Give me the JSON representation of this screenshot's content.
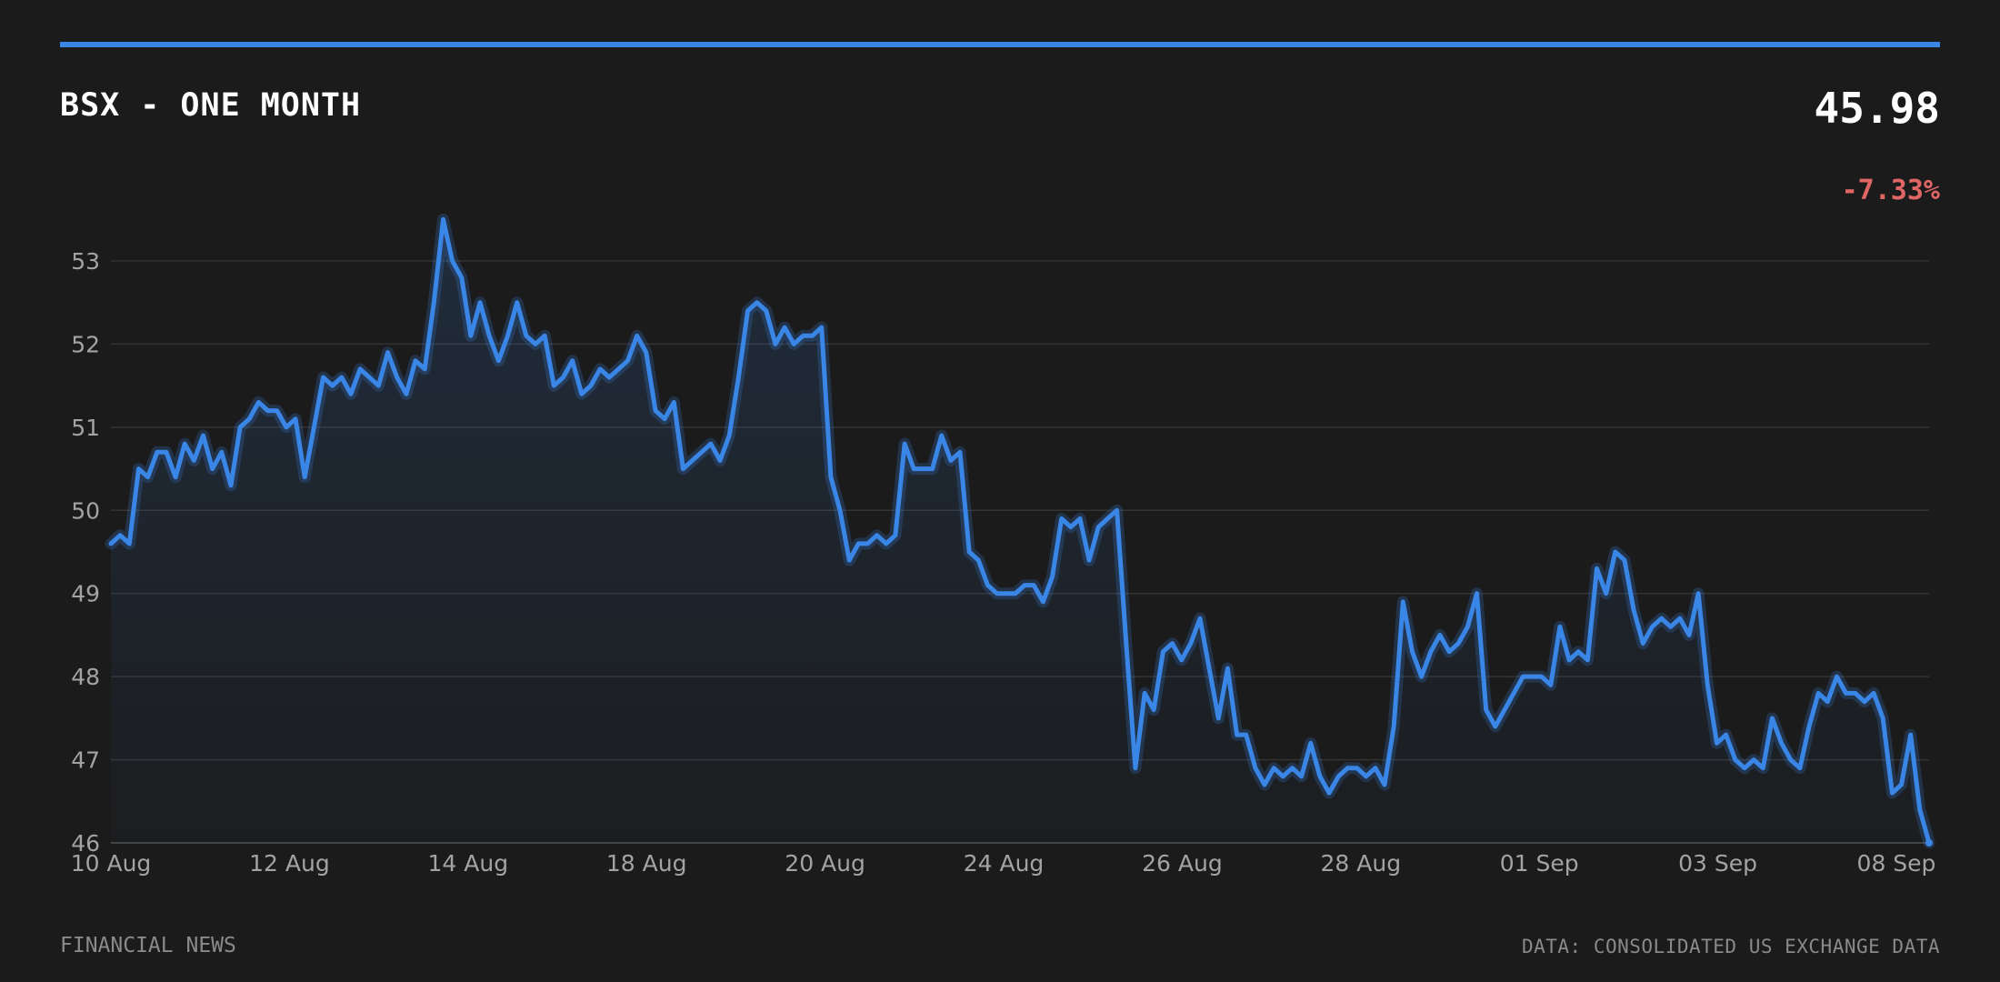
{
  "header": {
    "title": "BSX - ONE MONTH",
    "price": "45.98",
    "change": "-7.33%"
  },
  "footer": {
    "source_left": "FINANCIAL NEWS",
    "source_right": "DATA: CONSOLIDATED US EXCHANGE DATA"
  },
  "colors": {
    "background": "#1b1b1b",
    "line": "#3a86e6",
    "negative": "#e06666",
    "grid": "#333333"
  },
  "chart_data": {
    "type": "area",
    "title": "BSX - ONE MONTH",
    "xlabel": "",
    "ylabel": "",
    "ylim": [
      46,
      53.5
    ],
    "yticks": [
      46,
      47,
      48,
      49,
      50,
      51,
      52,
      53
    ],
    "grid": "horizontal",
    "x_tick_labels": [
      "10 Aug",
      "12 Aug",
      "14 Aug",
      "18 Aug",
      "20 Aug",
      "24 Aug",
      "26 Aug",
      "28 Aug",
      "01 Sep",
      "03 Sep",
      "08 Sep"
    ],
    "series": [
      {
        "values": [
          49.6,
          49.7,
          49.6,
          50.5,
          50.4,
          50.7,
          50.7,
          50.4,
          50.8,
          50.6,
          50.9,
          50.5,
          50.7,
          50.3,
          51.0,
          51.1,
          51.3,
          51.2,
          51.2,
          51.0,
          51.1,
          50.4,
          51.0,
          51.6,
          51.5,
          51.6,
          51.4,
          51.7,
          51.6,
          51.5,
          51.9,
          51.6,
          51.4,
          51.8,
          51.7,
          52.5,
          53.5,
          53.0,
          52.8,
          52.1,
          52.5,
          52.1,
          51.8,
          52.1,
          52.5,
          52.1,
          52.0,
          52.1,
          51.5,
          51.6,
          51.8,
          51.4,
          51.5,
          51.7,
          51.6,
          51.7,
          51.8,
          52.1,
          51.9,
          51.2,
          51.1,
          51.3,
          50.5,
          50.6,
          50.7,
          50.8,
          50.6,
          50.9,
          51.6,
          52.4,
          52.5,
          52.4,
          52.0,
          52.2,
          52.0,
          52.1,
          52.1,
          52.2,
          50.4,
          50.0,
          49.4,
          49.6,
          49.6,
          49.7,
          49.6,
          49.7,
          50.8,
          50.5,
          50.5,
          50.5,
          50.9,
          50.6,
          50.7,
          49.5,
          49.4,
          49.1,
          49.0,
          49.0,
          49.0,
          49.1,
          49.1,
          48.9,
          49.2,
          49.9,
          49.8,
          49.9,
          49.4,
          49.8,
          49.9,
          50.0,
          48.4,
          46.9,
          47.8,
          47.6,
          48.3,
          48.4,
          48.2,
          48.4,
          48.7,
          48.1,
          47.5,
          48.1,
          47.3,
          47.3,
          46.9,
          46.7,
          46.9,
          46.8,
          46.9,
          46.8,
          47.2,
          46.8,
          46.6,
          46.8,
          46.9,
          46.9,
          46.8,
          46.9,
          46.7,
          47.4,
          48.9,
          48.3,
          48.0,
          48.3,
          48.5,
          48.3,
          48.4,
          48.6,
          49.0,
          47.6,
          47.4,
          47.6,
          47.8,
          48.0,
          48.0,
          48.0,
          47.9,
          48.6,
          48.2,
          48.3,
          48.2,
          49.3,
          49.0,
          49.5,
          49.4,
          48.8,
          48.4,
          48.6,
          48.7,
          48.6,
          48.7,
          48.5,
          49.0,
          47.9,
          47.2,
          47.3,
          47.0,
          46.9,
          47.0,
          46.9,
          47.5,
          47.2,
          47.0,
          46.9,
          47.4,
          47.8,
          47.7,
          48.0,
          47.8,
          47.8,
          47.7,
          47.8,
          47.5,
          46.6,
          46.7,
          47.3,
          46.4,
          46.0
        ]
      }
    ]
  }
}
